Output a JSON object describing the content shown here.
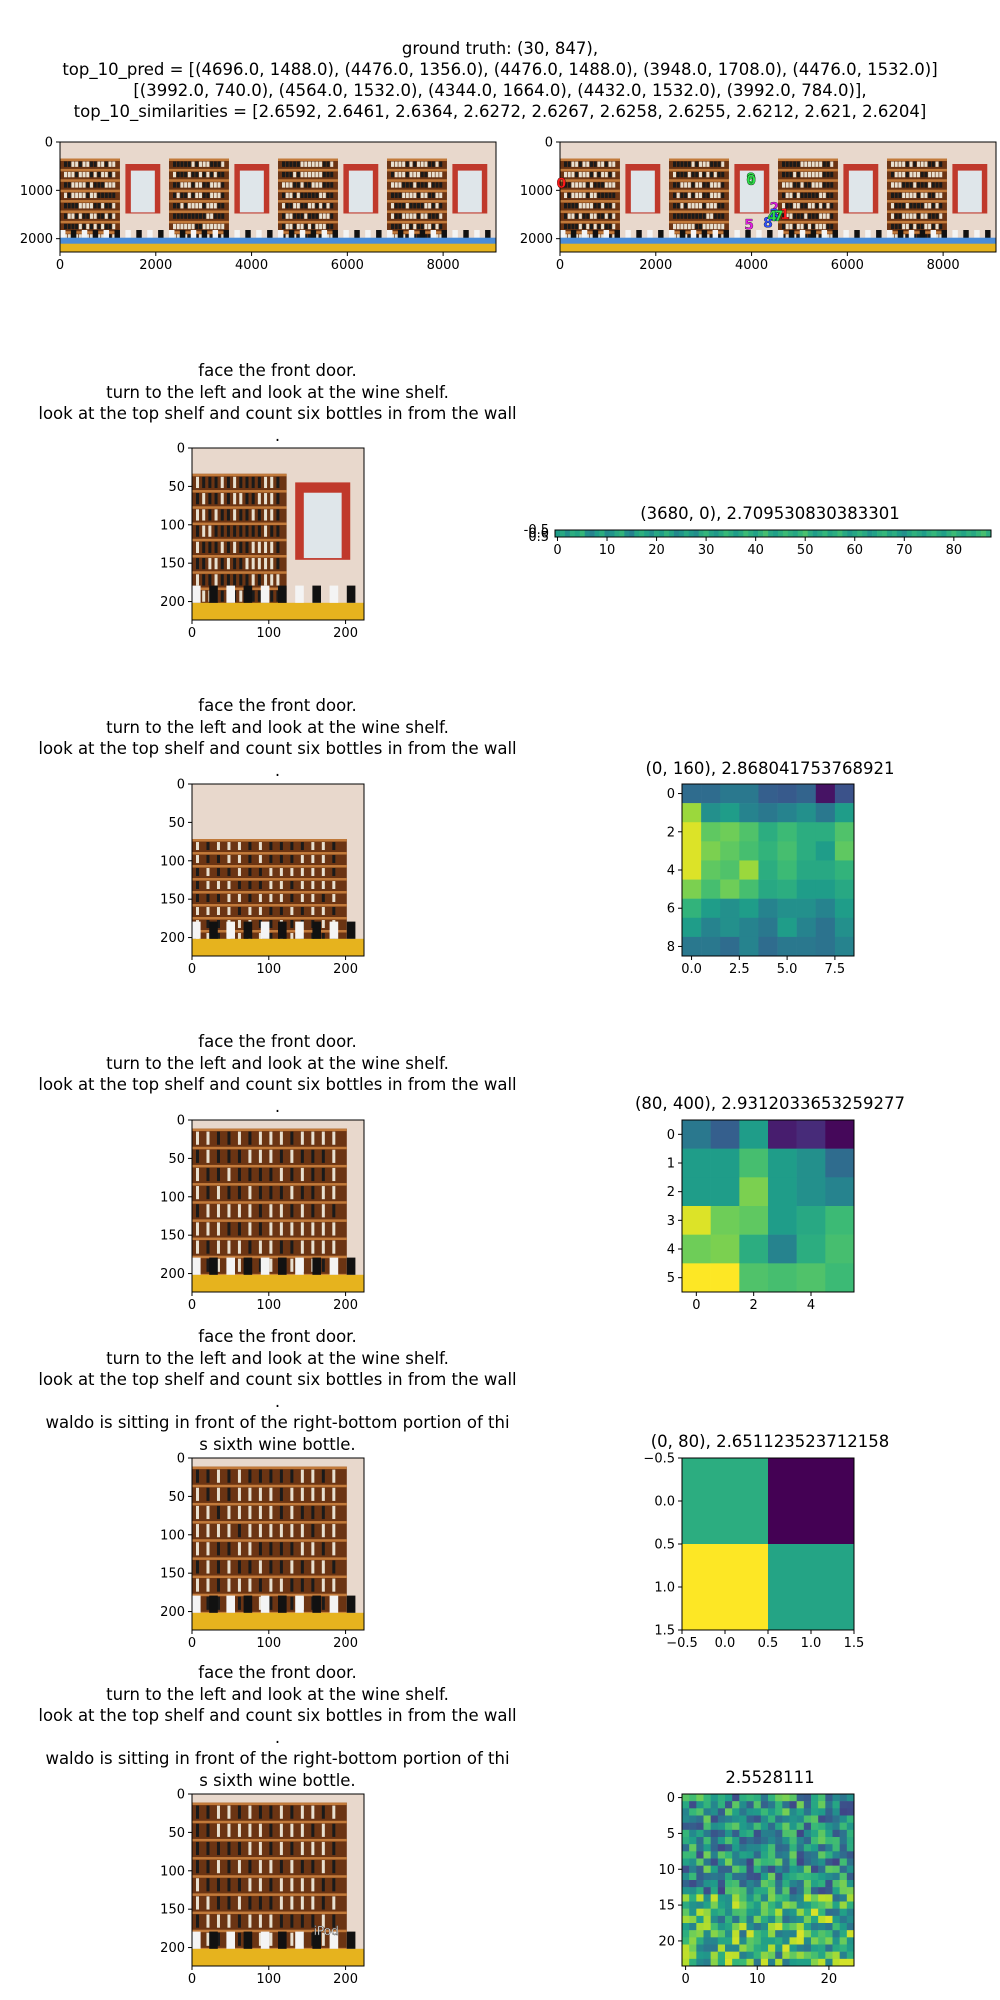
{
  "figure": {
    "suptitle_lines": [
      "ground truth: (30, 847),",
      "top_10_pred = [(4696.0, 1488.0), (4476.0, 1356.0), (4476.0, 1488.0), (3948.0, 1708.0), (4476.0, 1532.0)]",
      "[(3992.0, 740.0), (4564.0, 1532.0), (4344.0, 1664.0), (4432.0, 1532.0), (3992.0, 784.0)],",
      "top_10_similarities = [2.6592, 2.6461, 2.6364, 2.6272, 2.6267, 2.6258, 2.6255, 2.6212, 2.621, 2.6204]"
    ]
  },
  "colors": {
    "shelf_wood": "#8a4a1c",
    "wall": "#e8d8cc",
    "viridis_low": "#440154",
    "viridis_high": "#fde725",
    "marker_magenta": "#e020e0",
    "marker_green": "#2ee04a",
    "marker_red": "#ff1a1a",
    "marker_blue": "#3050ff"
  },
  "chart_data": [
    {
      "type": "image",
      "id": "panorama_left",
      "xticks": [
        0,
        2000,
        4000,
        6000,
        8000
      ],
      "yticks": [
        0,
        1000,
        2000
      ],
      "xlim": [
        0,
        9104
      ],
      "ylim": [
        2276,
        0
      ],
      "markers": []
    },
    {
      "type": "image",
      "id": "panorama_right",
      "xticks": [
        0,
        2000,
        4000,
        6000,
        8000
      ],
      "yticks": [
        0,
        1000,
        2000
      ],
      "xlim": [
        0,
        9104
      ],
      "ylim": [
        2276,
        0
      ],
      "markers": [
        {
          "label": "0",
          "x": 30,
          "y": 847,
          "color": "#ff1a1a"
        },
        {
          "label": "1",
          "x": 4696,
          "y": 1488,
          "color": "#ff1a1a"
        },
        {
          "label": "2",
          "x": 4476,
          "y": 1356,
          "color": "#e020e0"
        },
        {
          "label": "3",
          "x": 4476,
          "y": 1488,
          "color": "#3050ff"
        },
        {
          "label": "5",
          "x": 3948,
          "y": 1708,
          "color": "#e020e0"
        },
        {
          "label": "6",
          "x": 4476,
          "y": 1532,
          "color": "#3050ff"
        },
        {
          "label": "9",
          "x": 3992,
          "y": 740,
          "color": "#2ee04a"
        },
        {
          "label": "7",
          "x": 4564,
          "y": 1532,
          "color": "#2ee04a"
        },
        {
          "label": "8",
          "x": 4344,
          "y": 1664,
          "color": "#3050ff"
        },
        {
          "label": "4",
          "x": 4432,
          "y": 1532,
          "color": "#2ee04a"
        },
        {
          "label": "0",
          "x": 3992,
          "y": 784,
          "color": "#2ee04a"
        }
      ]
    },
    {
      "type": "image",
      "id": "view_1",
      "title_lines": [
        "face the front door.",
        "turn to the left and look at the wine shelf.",
        "look at the top shelf and count six bottles in from the wall",
        "."
      ],
      "xticks": [
        0,
        100,
        200
      ],
      "yticks": [
        0,
        50,
        100,
        150,
        200
      ],
      "xlim": [
        0,
        224
      ],
      "ylim": [
        224,
        0
      ]
    },
    {
      "type": "heatmap",
      "id": "heat_1",
      "title": "(3680, 0), 2.709530830383301",
      "rows": 1,
      "cols": 88,
      "xticks": [
        0,
        10,
        20,
        30,
        40,
        50,
        60,
        70,
        80
      ],
      "ytick_labels": [
        "-0.5",
        "0.0",
        "0.5"
      ],
      "values": [
        [
          0.55,
          0.6,
          0.5,
          0.62,
          0.58,
          0.66,
          0.5,
          0.45,
          0.55,
          0.62,
          0.48,
          0.52,
          0.6,
          0.65,
          0.5,
          0.44,
          0.58,
          0.63,
          0.57,
          0.5,
          0.6,
          0.56,
          0.64,
          0.58,
          0.47,
          0.52,
          0.6,
          0.54,
          0.49,
          0.61,
          0.66,
          0.58,
          0.53,
          0.6,
          0.67,
          0.62,
          0.55,
          0.6,
          0.68,
          0.62,
          0.57,
          0.64,
          0.7,
          0.6,
          0.56,
          0.62,
          0.68,
          0.63,
          0.59,
          0.66,
          0.71,
          0.62,
          0.55,
          0.6,
          0.66,
          0.58,
          0.62,
          0.68,
          0.6,
          0.54,
          0.59,
          0.65,
          0.6,
          0.52,
          0.57,
          0.63,
          0.66,
          0.58,
          0.62,
          0.55,
          0.5,
          0.58,
          0.64,
          0.6,
          0.55,
          0.62,
          0.66,
          0.6,
          0.56,
          0.63,
          0.68,
          0.62,
          0.58,
          0.64,
          0.6,
          0.66,
          0.7,
          0.62
        ]
      ]
    },
    {
      "type": "image",
      "id": "view_2",
      "title_lines": [
        "face the front door.",
        "turn to the left and look at the wine shelf.",
        "look at the top shelf and count six bottles in from the wall",
        "."
      ],
      "xticks": [
        0,
        100,
        200
      ],
      "yticks": [
        0,
        50,
        100,
        150,
        200
      ],
      "xlim": [
        0,
        224
      ],
      "ylim": [
        224,
        0
      ]
    },
    {
      "type": "heatmap",
      "id": "heat_2",
      "title": "(0, 160), 2.868041753768921",
      "rows": 9,
      "cols": 9,
      "xticks": [
        0.0,
        2.5,
        5.0,
        7.5
      ],
      "xtick_labels": [
        "0.0",
        "2.5",
        "5.0",
        "7.5"
      ],
      "yticks": [
        0,
        2,
        4,
        6,
        8
      ],
      "values": [
        [
          0.35,
          0.35,
          0.4,
          0.4,
          0.3,
          0.28,
          0.32,
          0.05,
          0.25
        ],
        [
          0.85,
          0.5,
          0.55,
          0.45,
          0.4,
          0.45,
          0.5,
          0.4,
          0.55
        ],
        [
          0.95,
          0.75,
          0.78,
          0.72,
          0.62,
          0.68,
          0.62,
          0.62,
          0.72
        ],
        [
          0.95,
          0.8,
          0.75,
          0.7,
          0.65,
          0.7,
          0.62,
          0.55,
          0.75
        ],
        [
          0.95,
          0.75,
          0.72,
          0.85,
          0.62,
          0.68,
          0.6,
          0.6,
          0.65
        ],
        [
          0.8,
          0.7,
          0.78,
          0.7,
          0.6,
          0.62,
          0.55,
          0.55,
          0.6
        ],
        [
          0.65,
          0.55,
          0.5,
          0.55,
          0.45,
          0.5,
          0.5,
          0.45,
          0.55
        ],
        [
          0.55,
          0.45,
          0.5,
          0.45,
          0.4,
          0.55,
          0.45,
          0.38,
          0.5
        ],
        [
          0.4,
          0.4,
          0.35,
          0.45,
          0.35,
          0.4,
          0.4,
          0.38,
          0.45
        ]
      ]
    },
    {
      "type": "image",
      "id": "view_3",
      "title_lines": [
        "face the front door.",
        "turn to the left and look at the wine shelf.",
        "look at the top shelf and count six bottles in from the wall",
        "."
      ],
      "xticks": [
        0,
        100,
        200
      ],
      "yticks": [
        0,
        50,
        100,
        150,
        200
      ],
      "xlim": [
        0,
        224
      ],
      "ylim": [
        224,
        0
      ]
    },
    {
      "type": "heatmap",
      "id": "heat_3",
      "title": "(80, 400), 2.9312033653259277",
      "rows": 6,
      "cols": 6,
      "xticks": [
        0,
        2,
        4
      ],
      "yticks": [
        0,
        1,
        2,
        3,
        4,
        5
      ],
      "values": [
        [
          0.4,
          0.3,
          0.55,
          0.08,
          0.12,
          0.02
        ],
        [
          0.55,
          0.55,
          0.7,
          0.55,
          0.5,
          0.35
        ],
        [
          0.55,
          0.55,
          0.8,
          0.55,
          0.5,
          0.45
        ],
        [
          0.95,
          0.78,
          0.75,
          0.55,
          0.6,
          0.68
        ],
        [
          0.78,
          0.8,
          0.62,
          0.45,
          0.62,
          0.7
        ],
        [
          1.0,
          1.0,
          0.72,
          0.7,
          0.72,
          0.68
        ]
      ]
    },
    {
      "type": "image",
      "id": "view_4",
      "title_lines": [
        "face the front door.",
        "turn to the left and look at the wine shelf.",
        "look at the top shelf and count six bottles in from the wall",
        ".",
        "waldo is sitting in front of the right-bottom portion of thi",
        "s sixth wine bottle."
      ],
      "xticks": [
        0,
        100,
        200
      ],
      "yticks": [
        0,
        50,
        100,
        150,
        200
      ],
      "xlim": [
        0,
        224
      ],
      "ylim": [
        224,
        0
      ]
    },
    {
      "type": "heatmap",
      "id": "heat_4",
      "title": "(0, 80), 2.651123523712158",
      "rows": 2,
      "cols": 2,
      "xticks": [
        -0.5,
        0.0,
        0.5,
        1.0,
        1.5
      ],
      "xtick_labels": [
        "−0.5",
        "0.0",
        "0.5",
        "1.0",
        "1.5"
      ],
      "yticks": [
        -0.5,
        0.0,
        0.5,
        1.0,
        1.5
      ],
      "ytick_labels": [
        "−0.5",
        "0.0",
        "0.5",
        "1.0",
        "1.5"
      ],
      "values": [
        [
          0.62,
          0.0
        ],
        [
          1.0,
          0.58
        ]
      ]
    },
    {
      "type": "image",
      "id": "view_5",
      "title_lines": [
        "face the front door.",
        "turn to the left and look at the wine shelf.",
        "look at the top shelf and count six bottles in from the wall",
        ".",
        "waldo is sitting in front of the right-bottom portion of thi",
        "s sixth wine bottle."
      ],
      "overlay_text": "iPod",
      "xticks": [
        0,
        100,
        200
      ],
      "yticks": [
        0,
        50,
        100,
        150,
        200
      ],
      "xlim": [
        0,
        224
      ],
      "ylim": [
        224,
        0
      ]
    },
    {
      "type": "heatmap",
      "id": "heat_5",
      "title": "2.5528111",
      "rows": 24,
      "cols": 24,
      "xticks": [
        0,
        10,
        20
      ],
      "yticks": [
        0,
        5,
        10,
        15,
        20
      ],
      "values": "pseudo-random"
    }
  ]
}
